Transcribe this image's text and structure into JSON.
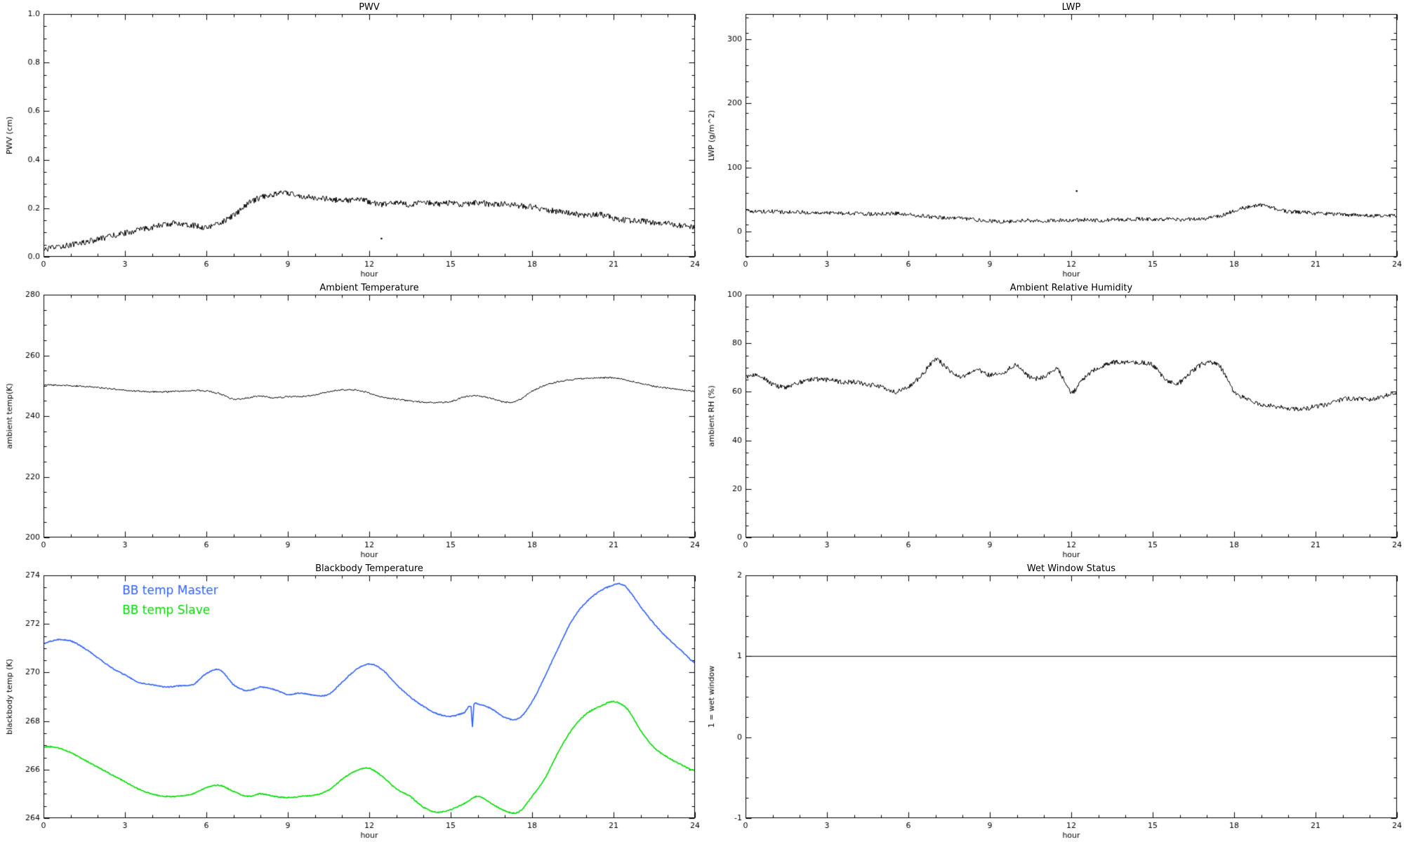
{
  "chart_data": [
    {
      "type": "line",
      "title": "PWV",
      "xlabel": "hour",
      "ylabel": "PWV (cm)",
      "xlim": [
        0,
        24
      ],
      "ylim": [
        0.0,
        1.0
      ],
      "xticks": [
        0,
        3,
        6,
        9,
        12,
        15,
        18,
        21,
        24
      ],
      "xtick_labels": [
        "0",
        "3",
        "6",
        "9",
        "12",
        "15",
        "18",
        "21",
        "24"
      ],
      "yticks": [
        0.0,
        0.2,
        0.4,
        0.6,
        0.8,
        1.0
      ],
      "ytick_labels": [
        "0.0",
        "0.2",
        "0.4",
        "0.6",
        "0.8",
        "1.0"
      ],
      "x_minor": 1,
      "y_minor": 0.05,
      "grid": false,
      "series": [
        {
          "name": "PWV",
          "color": "#000000",
          "noise": 0.012,
          "x": [
            0,
            0.5,
            1,
            1.5,
            2,
            2.5,
            3,
            3.5,
            4,
            4.5,
            5,
            5.5,
            6,
            6.5,
            7,
            7.5,
            8,
            8.5,
            9,
            9.5,
            10,
            10.5,
            11,
            11.5,
            12,
            12.5,
            13,
            13.5,
            14,
            14.5,
            15,
            15.5,
            16,
            16.5,
            17,
            17.5,
            18,
            18.5,
            19,
            19.5,
            20,
            20.5,
            21,
            21.5,
            22,
            22.5,
            23,
            23.5,
            24
          ],
          "y": [
            0.03,
            0.04,
            0.05,
            0.06,
            0.072,
            0.085,
            0.098,
            0.11,
            0.122,
            0.133,
            0.138,
            0.13,
            0.122,
            0.14,
            0.17,
            0.215,
            0.245,
            0.258,
            0.262,
            0.25,
            0.242,
            0.238,
            0.232,
            0.235,
            0.228,
            0.215,
            0.222,
            0.215,
            0.225,
            0.218,
            0.222,
            0.215,
            0.225,
            0.215,
            0.218,
            0.21,
            0.205,
            0.195,
            0.185,
            0.178,
            0.17,
            0.175,
            0.16,
            0.15,
            0.148,
            0.14,
            0.138,
            0.128,
            0.122
          ]
        },
        {
          "name": "stray-point",
          "color": "#000000",
          "marker": true,
          "x": [
            12.45
          ],
          "y": [
            0.075
          ]
        }
      ]
    },
    {
      "type": "line",
      "title": "LWP",
      "xlabel": "hour",
      "ylabel": "LWP (g/m^2)",
      "xlim": [
        0,
        24
      ],
      "ylim": [
        -40,
        340
      ],
      "xticks": [
        0,
        3,
        6,
        9,
        12,
        15,
        18,
        21,
        24
      ],
      "xtick_labels": [
        "0",
        "3",
        "6",
        "9",
        "12",
        "15",
        "18",
        "21",
        "24"
      ],
      "yticks": [
        0,
        100,
        200,
        300
      ],
      "ytick_labels": [
        "0",
        "100",
        "200",
        "300"
      ],
      "x_minor": 1,
      "y_minor": 25,
      "grid": false,
      "series": [
        {
          "name": "LWP",
          "color": "#000000",
          "noise": 3,
          "x": [
            0,
            0.5,
            1,
            1.5,
            2,
            2.5,
            3,
            3.5,
            4,
            4.5,
            5,
            5.5,
            6,
            6.5,
            7,
            7.5,
            8,
            8.5,
            9,
            9.5,
            10,
            10.5,
            11,
            11.5,
            12,
            12.5,
            13,
            13.5,
            14,
            14.5,
            15,
            15.5,
            16,
            16.5,
            17,
            17.5,
            18,
            18.5,
            19,
            19.5,
            20,
            20.5,
            21,
            21.5,
            22,
            22.5,
            23,
            23.5,
            24
          ],
          "y": [
            32,
            31,
            31,
            30,
            30,
            29,
            29,
            28,
            28,
            27,
            27,
            28,
            26,
            24,
            22,
            21,
            20,
            18,
            16,
            15,
            16,
            17,
            16,
            17,
            17,
            18,
            17,
            18,
            18,
            19,
            18,
            19,
            18,
            19,
            20,
            24,
            32,
            38,
            41,
            36,
            31,
            30,
            28,
            27,
            26,
            25,
            24,
            24,
            25
          ]
        },
        {
          "name": "stray-point",
          "color": "#000000",
          "marker": true,
          "x": [
            12.2
          ],
          "y": [
            63
          ]
        }
      ]
    },
    {
      "type": "line",
      "title": "Ambient Temperature",
      "xlabel": "hour",
      "ylabel": "ambient temp(K)",
      "xlim": [
        0,
        24
      ],
      "ylim": [
        200,
        280
      ],
      "xticks": [
        0,
        3,
        6,
        9,
        12,
        15,
        18,
        21,
        24
      ],
      "xtick_labels": [
        "0",
        "3",
        "6",
        "9",
        "12",
        "15",
        "18",
        "21",
        "24"
      ],
      "yticks": [
        200,
        220,
        240,
        260,
        280
      ],
      "ytick_labels": [
        "200",
        "220",
        "240",
        "260",
        "280"
      ],
      "x_minor": 1,
      "y_minor": 5,
      "grid": false,
      "series": [
        {
          "name": "ambient temperature",
          "color": "#000000",
          "noise": 0.25,
          "x": [
            0,
            0.5,
            1,
            1.5,
            2,
            2.5,
            3,
            3.5,
            4,
            4.5,
            5,
            5.5,
            6,
            6.5,
            7,
            7.5,
            8,
            8.5,
            9,
            9.5,
            10,
            10.5,
            11,
            11.5,
            12,
            12.5,
            13,
            13.5,
            14,
            14.5,
            15,
            15.5,
            16,
            16.5,
            17,
            17.5,
            18,
            18.5,
            19,
            19.5,
            20,
            20.5,
            21,
            21.5,
            22,
            22.5,
            23,
            23.5,
            24
          ],
          "y": [
            250.2,
            250.2,
            250.0,
            249.8,
            249.5,
            249.0,
            248.6,
            248.2,
            248.0,
            248.0,
            248.2,
            248.4,
            248.3,
            247.3,
            245.6,
            246.0,
            246.6,
            246.0,
            246.4,
            246.5,
            247.0,
            248.0,
            248.6,
            248.6,
            247.6,
            246.2,
            245.6,
            245.0,
            244.6,
            244.5,
            244.8,
            246.3,
            246.6,
            245.8,
            244.6,
            245.2,
            248.2,
            250.2,
            251.4,
            252.0,
            252.4,
            252.6,
            252.6,
            251.8,
            250.8,
            249.8,
            249.2,
            248.6,
            248.2
          ]
        }
      ]
    },
    {
      "type": "line",
      "title": "Ambient Relative Humidity",
      "xlabel": "hour",
      "ylabel": "ambient RH (%)",
      "xlim": [
        0,
        24
      ],
      "ylim": [
        0,
        100
      ],
      "xticks": [
        0,
        3,
        6,
        9,
        12,
        15,
        18,
        21,
        24
      ],
      "xtick_labels": [
        "0",
        "3",
        "6",
        "9",
        "12",
        "15",
        "18",
        "21",
        "24"
      ],
      "yticks": [
        0,
        20,
        40,
        60,
        80,
        100
      ],
      "ytick_labels": [
        "0",
        "20",
        "40",
        "60",
        "80",
        "100"
      ],
      "x_minor": 1,
      "y_minor": 5,
      "grid": false,
      "series": [
        {
          "name": "ambient relative humidity",
          "color": "#000000",
          "noise": 1,
          "x": [
            0,
            0.5,
            1,
            1.5,
            2,
            2.5,
            3,
            3.5,
            4,
            4.5,
            5,
            5.5,
            6,
            6.5,
            7,
            7.5,
            8,
            8.5,
            9,
            9.5,
            10,
            10.5,
            11,
            11.5,
            12,
            12.5,
            13,
            13.5,
            14,
            14.5,
            15,
            15.5,
            16,
            16.5,
            17,
            17.5,
            18,
            18.5,
            19,
            19.5,
            20,
            20.5,
            21,
            21.5,
            22,
            22.5,
            23,
            23.5,
            24
          ],
          "y": [
            66,
            67,
            63,
            62,
            64,
            65,
            65,
            64,
            64,
            63,
            62,
            60,
            62,
            67,
            73,
            69,
            66,
            69,
            67,
            68,
            71,
            66,
            66,
            69,
            60,
            66,
            70,
            72,
            72,
            72,
            71,
            65,
            64,
            69,
            72,
            70,
            60,
            57,
            55,
            54,
            53,
            53,
            54,
            55,
            57,
            57,
            57,
            58,
            60
          ]
        }
      ]
    },
    {
      "type": "line",
      "title": "Blackbody Temperature",
      "xlabel": "hour",
      "ylabel": "blackbody temp (K)",
      "xlim": [
        0,
        24
      ],
      "ylim": [
        264,
        274
      ],
      "xticks": [
        0,
        3,
        6,
        9,
        12,
        15,
        18,
        21,
        24
      ],
      "xtick_labels": [
        "0",
        "3",
        "6",
        "9",
        "12",
        "15",
        "18",
        "21",
        "24"
      ],
      "yticks": [
        264,
        266,
        268,
        270,
        272,
        274
      ],
      "ytick_labels": [
        "264",
        "266",
        "268",
        "270",
        "272",
        "274"
      ],
      "x_minor": 1,
      "y_minor": 0.5,
      "grid": false,
      "legend": {
        "position": "upper-left-inset",
        "entries": [
          {
            "label": "BB temp Master",
            "color": "#3060ff",
            "x": 2.9,
            "y": 273.35
          },
          {
            "label": "BB temp Slave",
            "color": "#00dd00",
            "x": 2.9,
            "y": 272.55
          }
        ]
      },
      "series": [
        {
          "name": "BB temp Master",
          "color": "#3060ff",
          "noise": 0.02,
          "width": 1.6,
          "x": [
            0,
            0.5,
            1,
            1.5,
            2,
            2.5,
            3,
            3.5,
            4,
            4.5,
            5,
            5.5,
            6,
            6.5,
            7,
            7.5,
            8,
            8.5,
            9,
            9.5,
            10,
            10.5,
            11,
            11.5,
            12,
            12.5,
            13,
            13.5,
            14,
            14.5,
            15,
            15.5,
            15.75,
            15.8,
            15.85,
            16,
            16.5,
            17,
            17.5,
            18,
            18.5,
            19,
            19.5,
            20,
            20.5,
            21,
            21.25,
            21.5,
            22,
            22.5,
            23,
            23.5,
            24
          ],
          "y": [
            271.2,
            271.35,
            271.3,
            271.0,
            270.6,
            270.2,
            269.9,
            269.6,
            269.5,
            269.4,
            269.45,
            269.5,
            269.95,
            270.1,
            269.5,
            269.25,
            269.4,
            269.3,
            269.1,
            269.15,
            269.05,
            269.1,
            269.6,
            270.1,
            270.35,
            270.1,
            269.5,
            269.0,
            268.6,
            268.3,
            268.2,
            268.35,
            268.6,
            267.75,
            268.65,
            268.7,
            268.5,
            268.15,
            268.1,
            268.8,
            269.9,
            271.1,
            272.2,
            272.9,
            273.35,
            273.6,
            273.65,
            273.45,
            272.7,
            272.0,
            271.4,
            270.9,
            270.4
          ]
        },
        {
          "name": "BB temp Slave",
          "color": "#00dd00",
          "noise": 0.02,
          "width": 1.6,
          "x": [
            0,
            0.5,
            1,
            1.5,
            2,
            2.5,
            3,
            3.5,
            4,
            4.5,
            5,
            5.5,
            6,
            6.5,
            7,
            7.5,
            8,
            8.5,
            9,
            9.5,
            10,
            10.5,
            11,
            11.5,
            12,
            12.5,
            13,
            13.5,
            14,
            14.5,
            15,
            15.5,
            16,
            16.5,
            17,
            17.5,
            18,
            18.5,
            19,
            19.5,
            20,
            20.5,
            21,
            21.5,
            22,
            22.5,
            23,
            23.5,
            24
          ],
          "y": [
            266.95,
            266.9,
            266.7,
            266.4,
            266.1,
            265.8,
            265.5,
            265.2,
            265.0,
            264.9,
            264.9,
            265.0,
            265.25,
            265.35,
            265.1,
            264.9,
            265.0,
            264.9,
            264.85,
            264.9,
            264.95,
            265.15,
            265.6,
            265.95,
            266.05,
            265.7,
            265.2,
            264.9,
            264.45,
            264.25,
            264.35,
            264.6,
            264.9,
            264.6,
            264.3,
            264.25,
            264.9,
            265.7,
            266.8,
            267.7,
            268.3,
            268.6,
            268.8,
            268.5,
            267.6,
            266.9,
            266.5,
            266.2,
            265.95
          ]
        }
      ]
    },
    {
      "type": "line",
      "title": "Wet Window Status",
      "xlabel": "hour",
      "ylabel": "1 = wet window",
      "xlim": [
        0,
        24
      ],
      "ylim": [
        -1,
        2
      ],
      "xticks": [
        0,
        3,
        6,
        9,
        12,
        15,
        18,
        21,
        24
      ],
      "xtick_labels": [
        "0",
        "3",
        "6",
        "9",
        "12",
        "15",
        "18",
        "21",
        "24"
      ],
      "yticks": [
        -1,
        0,
        1,
        2
      ],
      "ytick_labels": [
        "-1",
        "0",
        "1",
        "2"
      ],
      "x_minor": 1,
      "y_minor": 0.25,
      "grid": false,
      "series": [
        {
          "name": "wet window flag",
          "color": "#000000",
          "noise": 0,
          "x": [
            0,
            24
          ],
          "y": [
            1,
            1
          ]
        }
      ]
    }
  ]
}
